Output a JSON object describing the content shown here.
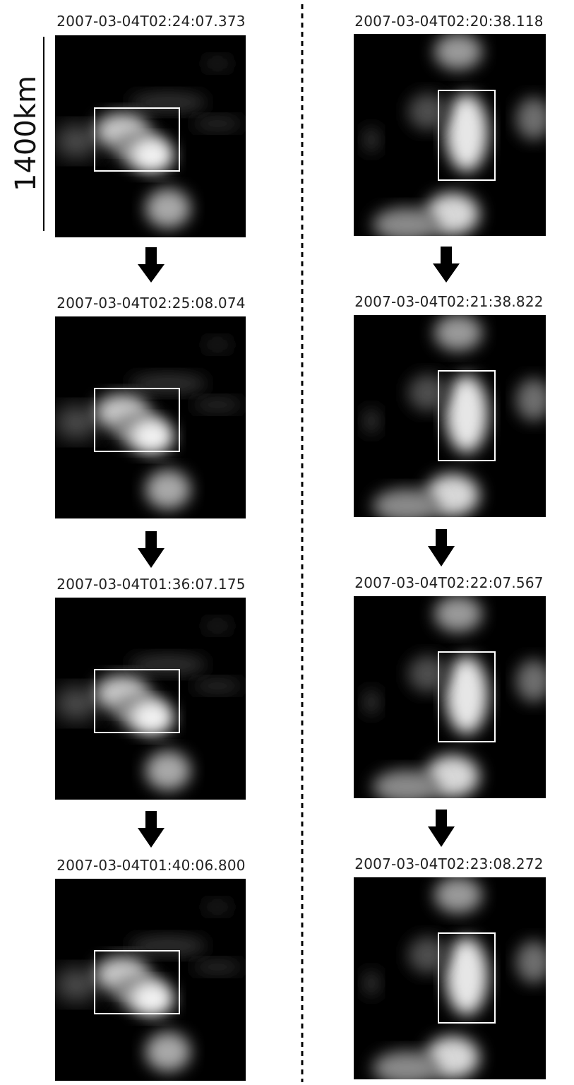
{
  "scale_label": "1400km",
  "columns": [
    {
      "name": "left",
      "panels": [
        {
          "timestamp": "2007-03-04T02:24:07.373"
        },
        {
          "timestamp": "2007-03-04T02:25:08.074"
        },
        {
          "timestamp": "2007-03-04T01:36:07.175"
        },
        {
          "timestamp": "2007-03-04T01:40:06.800"
        }
      ]
    },
    {
      "name": "right",
      "panels": [
        {
          "timestamp": "2007-03-04T02:20:38.118"
        },
        {
          "timestamp": "2007-03-04T02:21:38.822"
        },
        {
          "timestamp": "2007-03-04T02:22:07.567"
        },
        {
          "timestamp": "2007-03-04T02:23:08.272"
        }
      ]
    }
  ],
  "colors": {
    "background": "#ffffff",
    "panel": "#000000",
    "highlight_box": "#ffffff",
    "arrow": "#000000",
    "divider": "#000000"
  }
}
